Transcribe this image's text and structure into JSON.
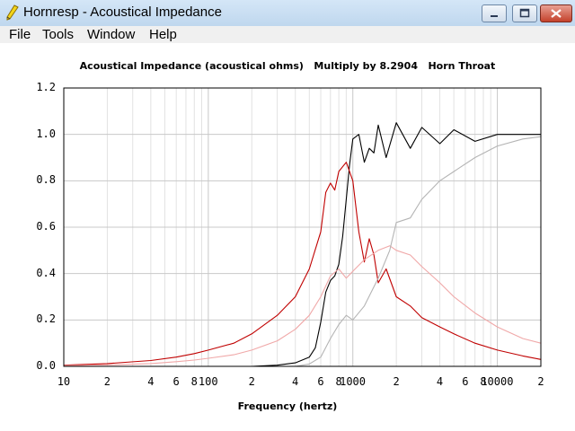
{
  "window": {
    "title": "Hornresp - Acoustical Impedance",
    "app_icon": "lightning-pencil-icon",
    "controls": [
      "minimize-icon",
      "maximize-icon",
      "close-icon"
    ]
  },
  "menu": {
    "items": [
      {
        "label": "File"
      },
      {
        "label": "Tools"
      },
      {
        "label": "Window"
      },
      {
        "label": "Help"
      }
    ]
  },
  "chart_data": {
    "type": "line",
    "title": "Acoustical Impedance (acoustical ohms)   Multiply by 8.2904   Horn Throat",
    "xlabel": "Frequency (hertz)",
    "ylabel": "",
    "xscale": "log",
    "xlim": [
      10,
      20000
    ],
    "ylim": [
      0,
      1.2
    ],
    "grid": true,
    "y_ticks": [
      "0.0",
      "0.2",
      "0.4",
      "0.6",
      "0.8",
      "1.0",
      "1.2"
    ],
    "x_ticks": [
      {
        "value": 10,
        "label": "10"
      },
      {
        "value": 20,
        "label": "2"
      },
      {
        "value": 40,
        "label": "4"
      },
      {
        "value": 60,
        "label": "6"
      },
      {
        "value": 80,
        "label": "8"
      },
      {
        "value": 100,
        "label": "100"
      },
      {
        "value": 200,
        "label": "2"
      },
      {
        "value": 400,
        "label": "4"
      },
      {
        "value": 600,
        "label": "6"
      },
      {
        "value": 800,
        "label": "8"
      },
      {
        "value": 1000,
        "label": "1000"
      },
      {
        "value": 2000,
        "label": "2"
      },
      {
        "value": 4000,
        "label": "4"
      },
      {
        "value": 6000,
        "label": "6"
      },
      {
        "value": 8000,
        "label": "8"
      },
      {
        "value": 10000,
        "label": "10000"
      },
      {
        "value": 20000,
        "label": "2"
      }
    ],
    "series": [
      {
        "color": "#000000",
        "x": [
          200,
          300,
          400,
          500,
          550,
          600,
          650,
          700,
          750,
          800,
          850,
          900,
          950,
          1000,
          1100,
          1200,
          1300,
          1400,
          1500,
          1700,
          2000,
          2500,
          3000,
          4000,
          5000,
          7000,
          10000,
          15000,
          20000
        ],
        "y": [
          0.0,
          0.005,
          0.015,
          0.04,
          0.08,
          0.19,
          0.32,
          0.37,
          0.39,
          0.44,
          0.56,
          0.72,
          0.87,
          0.98,
          1.0,
          0.88,
          0.94,
          0.92,
          1.04,
          0.9,
          1.05,
          0.94,
          1.03,
          0.96,
          1.02,
          0.97,
          1.0,
          1.0,
          1.0
        ]
      },
      {
        "color": "#c00000",
        "x": [
          10,
          20,
          40,
          60,
          80,
          100,
          150,
          200,
          300,
          400,
          500,
          600,
          650,
          700,
          750,
          800,
          900,
          1000,
          1100,
          1200,
          1300,
          1400,
          1500,
          1700,
          2000,
          2500,
          3000,
          4000,
          5000,
          7000,
          10000,
          15000,
          20000
        ],
        "y": [
          0.005,
          0.012,
          0.025,
          0.04,
          0.055,
          0.07,
          0.1,
          0.14,
          0.22,
          0.3,
          0.42,
          0.58,
          0.75,
          0.79,
          0.76,
          0.84,
          0.88,
          0.8,
          0.58,
          0.45,
          0.55,
          0.48,
          0.36,
          0.42,
          0.3,
          0.26,
          0.21,
          0.17,
          0.14,
          0.1,
          0.07,
          0.045,
          0.03
        ]
      },
      {
        "color": "#f0a8a8",
        "x": [
          10,
          20,
          40,
          60,
          80,
          100,
          150,
          200,
          300,
          400,
          500,
          600,
          700,
          800,
          900,
          1000,
          1200,
          1500,
          1800,
          2000,
          2500,
          3000,
          4000,
          5000,
          7000,
          10000,
          15000,
          20000
        ],
        "y": [
          0.003,
          0.006,
          0.012,
          0.02,
          0.027,
          0.035,
          0.05,
          0.07,
          0.11,
          0.16,
          0.22,
          0.3,
          0.39,
          0.42,
          0.38,
          0.41,
          0.46,
          0.5,
          0.52,
          0.5,
          0.48,
          0.43,
          0.36,
          0.3,
          0.23,
          0.17,
          0.12,
          0.1
        ]
      },
      {
        "color": "#b4b4b4",
        "x": [
          400,
          500,
          600,
          700,
          800,
          900,
          1000,
          1200,
          1500,
          1800,
          2000,
          2500,
          3000,
          4000,
          5000,
          7000,
          10000,
          15000,
          20000
        ],
        "y": [
          0.0,
          0.01,
          0.04,
          0.12,
          0.18,
          0.22,
          0.2,
          0.26,
          0.38,
          0.5,
          0.62,
          0.64,
          0.72,
          0.8,
          0.84,
          0.9,
          0.95,
          0.98,
          0.99
        ]
      }
    ]
  }
}
